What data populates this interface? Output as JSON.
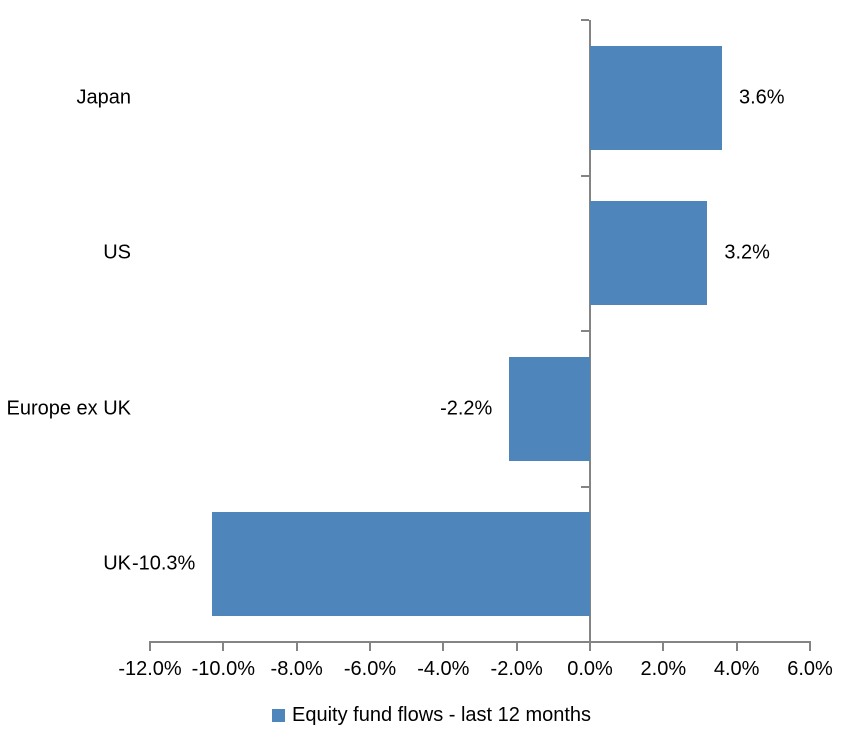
{
  "chart_data": {
    "type": "bar",
    "orientation": "horizontal",
    "title": "",
    "categories": [
      "Japan",
      "US",
      "Europe ex UK",
      "UK"
    ],
    "values": [
      3.6,
      3.2,
      -2.2,
      -10.3
    ],
    "data_labels": [
      "3.6%",
      "3.2%",
      "-2.2%",
      "-10.3%"
    ],
    "series_name": "Equity fund flows - last 12 months",
    "xlim": [
      -12,
      6
    ],
    "x_ticks": [
      -12,
      -10,
      -8,
      -6,
      -4,
      -2,
      0,
      2,
      4,
      6
    ],
    "x_tick_labels": [
      "-12.0%",
      "-10.0%",
      "-8.0%",
      "-6.0%",
      "-4.0%",
      "-2.0%",
      "0.0%",
      "2.0%",
      "4.0%",
      "6.0%"
    ],
    "grid": false,
    "legend_position": "bottom",
    "bar_color": "#4E86BC",
    "axis_color": "#848484",
    "text_color": "#000000"
  },
  "legend": {
    "label": "Equity fund flows - last 12 months"
  }
}
